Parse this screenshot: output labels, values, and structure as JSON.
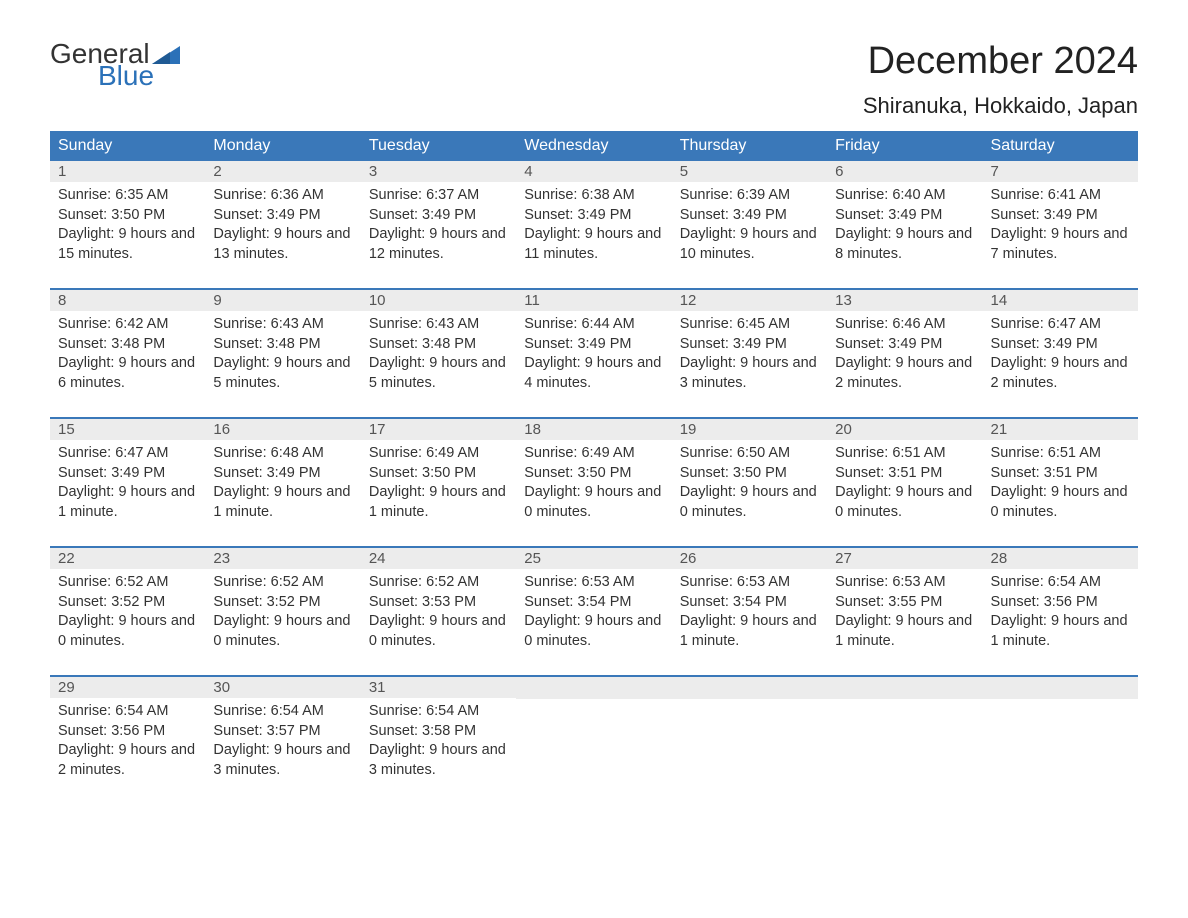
{
  "logo": {
    "text_general": "General",
    "text_blue": "Blue",
    "flag_color": "#2b71b8"
  },
  "title": "December 2024",
  "location": "Shiranuka, Hokkaido, Japan",
  "header_bg": "#3a78b9",
  "header_fg": "#ffffff",
  "daynum_bg": "#ececec",
  "text_color": "#333333",
  "day_labels": [
    "Sunday",
    "Monday",
    "Tuesday",
    "Wednesday",
    "Thursday",
    "Friday",
    "Saturday"
  ],
  "weeks": [
    [
      {
        "n": "1",
        "sunrise": "6:35 AM",
        "sunset": "3:50 PM",
        "daylight": "9 hours and 15 minutes."
      },
      {
        "n": "2",
        "sunrise": "6:36 AM",
        "sunset": "3:49 PM",
        "daylight": "9 hours and 13 minutes."
      },
      {
        "n": "3",
        "sunrise": "6:37 AM",
        "sunset": "3:49 PM",
        "daylight": "9 hours and 12 minutes."
      },
      {
        "n": "4",
        "sunrise": "6:38 AM",
        "sunset": "3:49 PM",
        "daylight": "9 hours and 11 minutes."
      },
      {
        "n": "5",
        "sunrise": "6:39 AM",
        "sunset": "3:49 PM",
        "daylight": "9 hours and 10 minutes."
      },
      {
        "n": "6",
        "sunrise": "6:40 AM",
        "sunset": "3:49 PM",
        "daylight": "9 hours and 8 minutes."
      },
      {
        "n": "7",
        "sunrise": "6:41 AM",
        "sunset": "3:49 PM",
        "daylight": "9 hours and 7 minutes."
      }
    ],
    [
      {
        "n": "8",
        "sunrise": "6:42 AM",
        "sunset": "3:48 PM",
        "daylight": "9 hours and 6 minutes."
      },
      {
        "n": "9",
        "sunrise": "6:43 AM",
        "sunset": "3:48 PM",
        "daylight": "9 hours and 5 minutes."
      },
      {
        "n": "10",
        "sunrise": "6:43 AM",
        "sunset": "3:48 PM",
        "daylight": "9 hours and 5 minutes."
      },
      {
        "n": "11",
        "sunrise": "6:44 AM",
        "sunset": "3:49 PM",
        "daylight": "9 hours and 4 minutes."
      },
      {
        "n": "12",
        "sunrise": "6:45 AM",
        "sunset": "3:49 PM",
        "daylight": "9 hours and 3 minutes."
      },
      {
        "n": "13",
        "sunrise": "6:46 AM",
        "sunset": "3:49 PM",
        "daylight": "9 hours and 2 minutes."
      },
      {
        "n": "14",
        "sunrise": "6:47 AM",
        "sunset": "3:49 PM",
        "daylight": "9 hours and 2 minutes."
      }
    ],
    [
      {
        "n": "15",
        "sunrise": "6:47 AM",
        "sunset": "3:49 PM",
        "daylight": "9 hours and 1 minute."
      },
      {
        "n": "16",
        "sunrise": "6:48 AM",
        "sunset": "3:49 PM",
        "daylight": "9 hours and 1 minute."
      },
      {
        "n": "17",
        "sunrise": "6:49 AM",
        "sunset": "3:50 PM",
        "daylight": "9 hours and 1 minute."
      },
      {
        "n": "18",
        "sunrise": "6:49 AM",
        "sunset": "3:50 PM",
        "daylight": "9 hours and 0 minutes."
      },
      {
        "n": "19",
        "sunrise": "6:50 AM",
        "sunset": "3:50 PM",
        "daylight": "9 hours and 0 minutes."
      },
      {
        "n": "20",
        "sunrise": "6:51 AM",
        "sunset": "3:51 PM",
        "daylight": "9 hours and 0 minutes."
      },
      {
        "n": "21",
        "sunrise": "6:51 AM",
        "sunset": "3:51 PM",
        "daylight": "9 hours and 0 minutes."
      }
    ],
    [
      {
        "n": "22",
        "sunrise": "6:52 AM",
        "sunset": "3:52 PM",
        "daylight": "9 hours and 0 minutes."
      },
      {
        "n": "23",
        "sunrise": "6:52 AM",
        "sunset": "3:52 PM",
        "daylight": "9 hours and 0 minutes."
      },
      {
        "n": "24",
        "sunrise": "6:52 AM",
        "sunset": "3:53 PM",
        "daylight": "9 hours and 0 minutes."
      },
      {
        "n": "25",
        "sunrise": "6:53 AM",
        "sunset": "3:54 PM",
        "daylight": "9 hours and 0 minutes."
      },
      {
        "n": "26",
        "sunrise": "6:53 AM",
        "sunset": "3:54 PM",
        "daylight": "9 hours and 1 minute."
      },
      {
        "n": "27",
        "sunrise": "6:53 AM",
        "sunset": "3:55 PM",
        "daylight": "9 hours and 1 minute."
      },
      {
        "n": "28",
        "sunrise": "6:54 AM",
        "sunset": "3:56 PM",
        "daylight": "9 hours and 1 minute."
      }
    ],
    [
      {
        "n": "29",
        "sunrise": "6:54 AM",
        "sunset": "3:56 PM",
        "daylight": "9 hours and 2 minutes."
      },
      {
        "n": "30",
        "sunrise": "6:54 AM",
        "sunset": "3:57 PM",
        "daylight": "9 hours and 3 minutes."
      },
      {
        "n": "31",
        "sunrise": "6:54 AM",
        "sunset": "3:58 PM",
        "daylight": "9 hours and 3 minutes."
      },
      null,
      null,
      null,
      null
    ]
  ],
  "labels": {
    "sunrise": "Sunrise: ",
    "sunset": "Sunset: ",
    "daylight": "Daylight: "
  }
}
